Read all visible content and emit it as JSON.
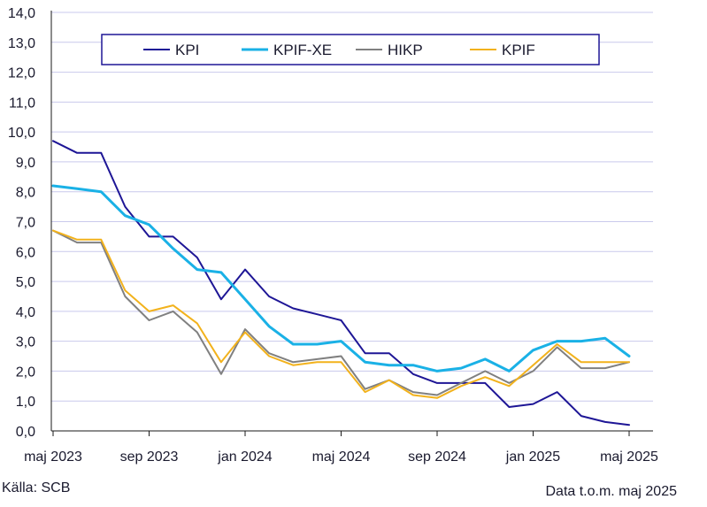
{
  "chart_data": {
    "type": "line",
    "ylim": [
      0,
      14
    ],
    "y_ticks": [
      "0,0",
      "1,0",
      "2,0",
      "3,0",
      "4,0",
      "5,0",
      "6,0",
      "7,0",
      "8,0",
      "9,0",
      "10,0",
      "11,0",
      "12,0",
      "13,0",
      "14,0"
    ],
    "x_tick_labels": [
      {
        "label": "maj 2023",
        "index": 0
      },
      {
        "label": "sep 2023",
        "index": 4
      },
      {
        "label": "jan 2024",
        "index": 8
      },
      {
        "label": "maj 2024",
        "index": 12
      },
      {
        "label": "sep 2024",
        "index": 16
      },
      {
        "label": "jan 2025",
        "index": 20
      },
      {
        "label": "maj 2025",
        "index": 24
      }
    ],
    "months": [
      "maj 2023",
      "jun 2023",
      "jul 2023",
      "aug 2023",
      "sep 2023",
      "okt 2023",
      "nov 2023",
      "dec 2023",
      "jan 2024",
      "feb 2024",
      "mar 2024",
      "apr 2024",
      "maj 2024",
      "jun 2024",
      "jul 2024",
      "aug 2024",
      "sep 2024",
      "okt 2024",
      "nov 2024",
      "dec 2024",
      "jan 2025",
      "feb 2025",
      "mar 2025",
      "apr 2025",
      "maj 2025"
    ],
    "grid": true,
    "legend_position": "top",
    "series": [
      {
        "name": "KPI",
        "color": "#1e1696",
        "width": 2,
        "values": [
          9.7,
          9.3,
          9.3,
          7.5,
          6.5,
          6.5,
          5.8,
          4.4,
          5.4,
          4.5,
          4.1,
          3.9,
          3.7,
          2.6,
          2.6,
          1.9,
          1.6,
          1.6,
          1.6,
          0.8,
          0.9,
          1.3,
          0.5,
          0.3,
          0.2
        ]
      },
      {
        "name": "KPIF-XE",
        "color": "#1ab1e6",
        "width": 3,
        "values": [
          8.2,
          8.1,
          8.0,
          7.2,
          6.9,
          6.1,
          5.4,
          5.3,
          4.4,
          3.5,
          2.9,
          2.9,
          3.0,
          2.3,
          2.2,
          2.2,
          2.0,
          2.1,
          2.4,
          2.0,
          2.7,
          3.0,
          3.0,
          3.1,
          2.5
        ]
      },
      {
        "name": "HIKP",
        "color": "#808080",
        "width": 2,
        "values": [
          6.7,
          6.3,
          6.3,
          4.5,
          3.7,
          4.0,
          3.3,
          1.9,
          3.4,
          2.6,
          2.3,
          2.4,
          2.5,
          1.4,
          1.7,
          1.3,
          1.2,
          1.6,
          2.0,
          1.6,
          2.0,
          2.8,
          2.1,
          2.1,
          2.3
        ]
      },
      {
        "name": "KPIF",
        "color": "#f2b21c",
        "width": 2,
        "values": [
          6.7,
          6.4,
          6.4,
          4.7,
          4.0,
          4.2,
          3.6,
          2.3,
          3.3,
          2.5,
          2.2,
          2.3,
          2.3,
          1.3,
          1.7,
          1.2,
          1.1,
          1.5,
          1.8,
          1.5,
          2.2,
          2.9,
          2.3,
          2.3,
          2.3
        ]
      }
    ]
  },
  "footer": {
    "source": "Källa: SCB",
    "data_note": "Data t.o.m. maj 2025"
  }
}
